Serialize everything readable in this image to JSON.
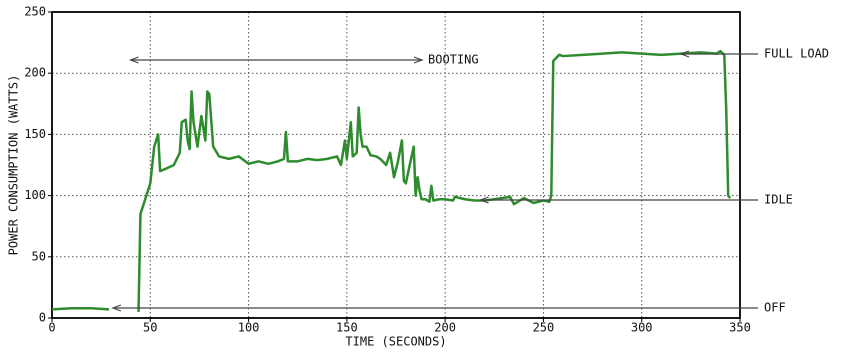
{
  "chart_data": {
    "type": "line",
    "xlabel": "TIME (SECONDS)",
    "ylabel": "POWER CONSUMPTION (WATTS)",
    "x": [
      0,
      10,
      20,
      29,
      36,
      44,
      45,
      47,
      50,
      52,
      54,
      55,
      58,
      62,
      65,
      66,
      68,
      69,
      70,
      71,
      72,
      74,
      76,
      78,
      79,
      80,
      82,
      85,
      90,
      95,
      100,
      105,
      110,
      115,
      118,
      119,
      120,
      125,
      130,
      135,
      140,
      145,
      147,
      149,
      150,
      152,
      153,
      155,
      156,
      157,
      158,
      160,
      162,
      165,
      167,
      170,
      172,
      174,
      176,
      178,
      179,
      180,
      182,
      184,
      185,
      186,
      187,
      188,
      190,
      192,
      193,
      194,
      197,
      200,
      204,
      205,
      210,
      215,
      220,
      225,
      233,
      235,
      240,
      245,
      250,
      253,
      254,
      255,
      258,
      260,
      270,
      280,
      290,
      300,
      310,
      320,
      330,
      338,
      340,
      342,
      343,
      344,
      345
    ],
    "series": [
      {
        "name": "power",
        "color": "#2e8b2e",
        "values": [
          7,
          8,
          8,
          7,
          null,
          5,
          85,
          95,
          110,
          140,
          150,
          120,
          122,
          125,
          135,
          160,
          162,
          145,
          138,
          185,
          160,
          140,
          165,
          145,
          185,
          183,
          140,
          132,
          130,
          132,
          126,
          128,
          126,
          128,
          130,
          152,
          128,
          128,
          130,
          129,
          130,
          132,
          125,
          145,
          130,
          160,
          132,
          135,
          172,
          150,
          140,
          140,
          133,
          132,
          130,
          125,
          135,
          115,
          128,
          145,
          112,
          110,
          125,
          140,
          100,
          115,
          104,
          97,
          97,
          95,
          108,
          96,
          97,
          97,
          96,
          99,
          97,
          96,
          96,
          97,
          99,
          93,
          98,
          94,
          96,
          95,
          100,
          210,
          215,
          214,
          215,
          216,
          217,
          216,
          215,
          216,
          217,
          216,
          218,
          215,
          170,
          100,
          98
        ]
      }
    ],
    "xlim": [
      0,
      350
    ],
    "xticks": [
      0,
      50,
      100,
      150,
      200,
      250,
      300,
      350
    ],
    "ylim": [
      0,
      250
    ],
    "yticks": [
      0,
      50,
      100,
      150,
      200,
      250
    ],
    "grid": true,
    "annotations": [
      {
        "text": "BOOTING"
      },
      {
        "text": "FULL LOAD"
      },
      {
        "text": "IDLE"
      },
      {
        "text": "OFF"
      }
    ]
  }
}
